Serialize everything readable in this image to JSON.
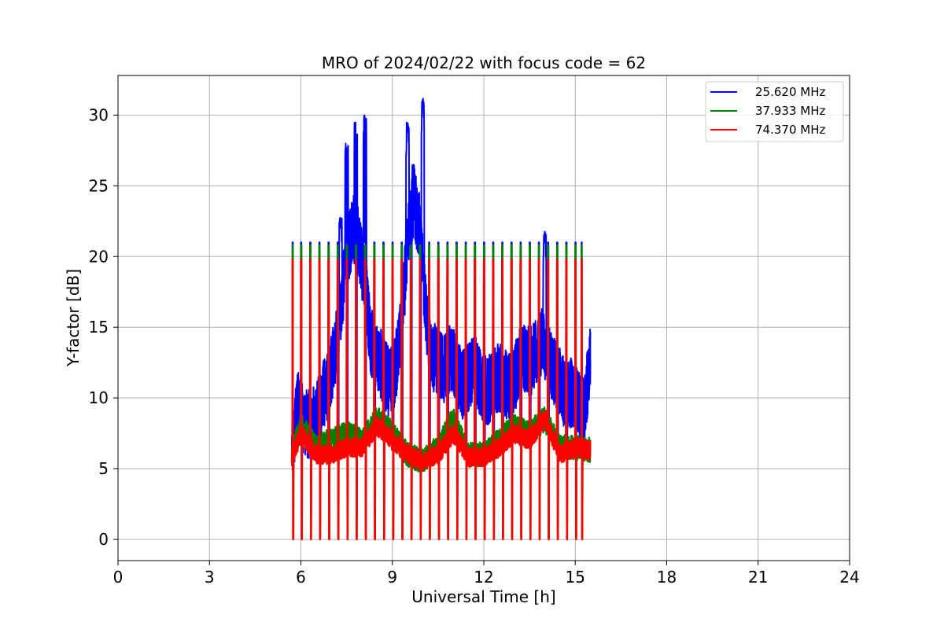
{
  "chart_data": {
    "type": "line",
    "title": "MRO of 2024/02/22 with focus code = 62",
    "xlabel": "Universal Time [h]",
    "ylabel": "Y-factor [dB]",
    "xlim": [
      0,
      24
    ],
    "ylim": [
      -1.5,
      32.8
    ],
    "xticks": [
      0,
      3,
      6,
      9,
      12,
      15,
      18,
      21,
      24
    ],
    "yticks": [
      0,
      5,
      10,
      15,
      20,
      25,
      30
    ],
    "grid": true,
    "legend_position": "top-right",
    "series": [
      {
        "name": "25.620 MHz",
        "color": "#0000ff",
        "baseline_x": [
          5.7,
          5.9,
          6.1,
          6.3,
          6.5,
          6.7,
          6.9,
          7.1,
          7.3,
          7.5,
          7.7,
          7.9,
          8.1,
          8.3,
          8.5,
          8.7,
          8.9,
          9.1,
          9.3,
          9.5,
          9.7,
          9.9,
          10.1,
          10.3,
          10.5,
          10.7,
          10.9,
          11.1,
          11.3,
          11.5,
          11.7,
          11.9,
          12.1,
          12.3,
          12.5,
          12.7,
          12.9,
          13.1,
          13.3,
          13.5,
          13.7,
          13.9,
          14.1,
          14.3,
          14.5,
          14.7,
          14.9,
          15.1,
          15.3,
          15.5
        ],
        "baseline_y": [
          6.5,
          9.5,
          8.5,
          8.0,
          8.5,
          10.0,
          11.0,
          13.0,
          16.0,
          20.0,
          22.0,
          21.0,
          18.0,
          14.0,
          13.0,
          12.0,
          11.0,
          12.0,
          15.0,
          21.0,
          24.0,
          22.0,
          16.0,
          13.0,
          12.5,
          12.0,
          13.0,
          12.0,
          11.0,
          11.5,
          12.0,
          11.0,
          10.5,
          11.0,
          11.5,
          11.0,
          10.5,
          12.0,
          13.0,
          12.5,
          13.0,
          14.0,
          13.0,
          12.0,
          11.0,
          10.0,
          10.5,
          9.5,
          9.0,
          13.0
        ],
        "amplitude": 2.5,
        "peaks": [
          [
            7.5,
            28.0
          ],
          [
            7.8,
            29.5
          ],
          [
            8.1,
            30.0
          ],
          [
            9.5,
            29.5
          ],
          [
            9.7,
            26.5
          ],
          [
            10.0,
            31.2
          ],
          [
            14.0,
            21.8
          ],
          [
            7.3,
            22.8
          ]
        ],
        "spike_top": 21.0,
        "spike_bottom": 0.2
      },
      {
        "name": "37.933 MHz",
        "color": "#008000",
        "baseline_x": [
          5.7,
          6.0,
          6.5,
          7.0,
          7.5,
          8.0,
          8.5,
          9.0,
          9.5,
          10.0,
          10.5,
          11.0,
          11.5,
          12.0,
          12.5,
          13.0,
          13.5,
          14.0,
          14.5,
          15.0,
          15.5
        ],
        "baseline_y": [
          6.0,
          8.0,
          6.5,
          7.0,
          7.5,
          7.0,
          8.5,
          7.5,
          6.0,
          5.5,
          6.5,
          8.5,
          6.0,
          6.0,
          7.0,
          8.0,
          7.5,
          8.5,
          6.5,
          6.5,
          6.3
        ],
        "amplitude": 0.9,
        "peaks": [],
        "spike_top": 20.8,
        "spike_bottom": 0.1
      },
      {
        "name": "74.370 MHz",
        "color": "#ff0000",
        "baseline_x": [
          5.7,
          6.0,
          6.5,
          7.0,
          7.5,
          8.0,
          8.5,
          9.0,
          9.5,
          10.0,
          10.5,
          11.0,
          11.5,
          12.0,
          12.5,
          13.0,
          13.5,
          14.0,
          14.5,
          15.0,
          15.5
        ],
        "baseline_y": [
          5.8,
          7.5,
          6.0,
          6.0,
          6.5,
          6.5,
          8.0,
          7.0,
          6.0,
          5.5,
          6.0,
          7.5,
          5.8,
          5.8,
          6.5,
          7.5,
          7.0,
          8.5,
          6.0,
          6.5,
          6.3
        ],
        "amplitude": 0.7,
        "peaks": [],
        "spike_top": 19.8,
        "spike_bottom": 0.0
      }
    ],
    "calibration_spikes_x": [
      5.72,
      6.0,
      6.3,
      6.6,
      6.9,
      7.2,
      7.5,
      7.8,
      8.1,
      8.4,
      8.7,
      9.0,
      9.3,
      9.6,
      9.9,
      10.2,
      10.5,
      10.8,
      11.1,
      11.4,
      11.7,
      12.0,
      12.3,
      12.6,
      12.9,
      13.2,
      13.5,
      13.8,
      14.1,
      14.4,
      14.7,
      15.0,
      15.2
    ]
  }
}
